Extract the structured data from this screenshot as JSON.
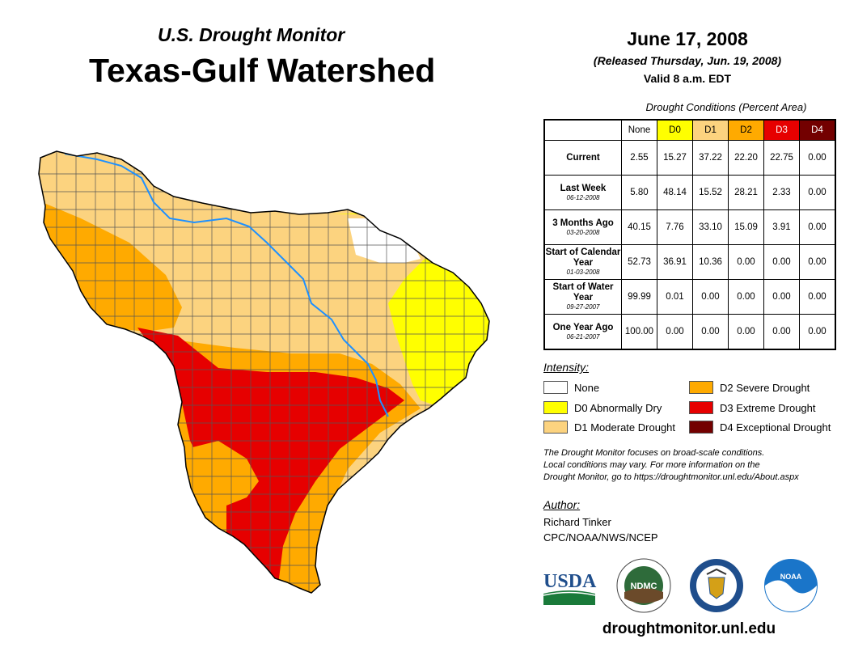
{
  "header": {
    "subtitle": "U.S. Drought Monitor",
    "title": "Texas-Gulf Watershed"
  },
  "release": {
    "date": "June 17, 2008",
    "released": "(Released Thursday, Jun. 19, 2008)",
    "valid": "Valid 8 a.m. EDT"
  },
  "table": {
    "caption": "Drought Conditions (Percent Area)",
    "columns": [
      "None",
      "D0",
      "D1",
      "D2",
      "D3",
      "D4"
    ],
    "column_colors": [
      "#ffffff",
      "#ffff00",
      "#fcd37f",
      "#ffaa00",
      "#e60000",
      "#730000"
    ],
    "column_text_colors": [
      "#000000",
      "#000000",
      "#000000",
      "#000000",
      "#ffffff",
      "#ffffff"
    ],
    "rows": [
      {
        "label": "Current",
        "sub": "",
        "values": [
          "2.55",
          "15.27",
          "37.22",
          "22.20",
          "22.75",
          "0.00"
        ]
      },
      {
        "label": "Last Week",
        "sub": "06-12-2008",
        "values": [
          "5.80",
          "48.14",
          "15.52",
          "28.21",
          "2.33",
          "0.00"
        ]
      },
      {
        "label": "3 Months Ago",
        "sub": "03-20-2008",
        "values": [
          "40.15",
          "7.76",
          "33.10",
          "15.09",
          "3.91",
          "0.00"
        ]
      },
      {
        "label": "Start of Calendar Year",
        "sub": "01-03-2008",
        "values": [
          "52.73",
          "36.91",
          "10.36",
          "0.00",
          "0.00",
          "0.00"
        ]
      },
      {
        "label": "Start of Water Year",
        "sub": "09-27-2007",
        "values": [
          "99.99",
          "0.01",
          "0.00",
          "0.00",
          "0.00",
          "0.00"
        ]
      },
      {
        "label": "One Year Ago",
        "sub": "06-21-2007",
        "values": [
          "100.00",
          "0.00",
          "0.00",
          "0.00",
          "0.00",
          "0.00"
        ]
      }
    ]
  },
  "legend": {
    "title": "Intensity:",
    "items": [
      {
        "label": "None",
        "color": "#ffffff"
      },
      {
        "label": "D0 Abnormally Dry",
        "color": "#ffff00"
      },
      {
        "label": "D1 Moderate Drought",
        "color": "#fcd37f"
      },
      {
        "label": "D2 Severe Drought",
        "color": "#ffaa00"
      },
      {
        "label": "D3 Extreme Drought",
        "color": "#e60000"
      },
      {
        "label": "D4 Exceptional Drought",
        "color": "#730000"
      }
    ]
  },
  "note": {
    "line1": "The Drought Monitor focuses on broad-scale conditions.",
    "line2": "Local conditions may vary. For more information on the",
    "line3": "Drought Monitor, go to https://droughtmonitor.unl.edu/About.aspx"
  },
  "author": {
    "title": "Author:",
    "name": "Richard Tinker",
    "org": "CPC/NOAA/NWS/NCEP"
  },
  "logos": {
    "usda": "USDA",
    "ndmc": "NDMC",
    "noaa": "NOAA"
  },
  "footer": {
    "website": "droughtmonitor.unl.edu"
  },
  "colors": {
    "river": "#1e90ff",
    "county_line": "#555555"
  }
}
